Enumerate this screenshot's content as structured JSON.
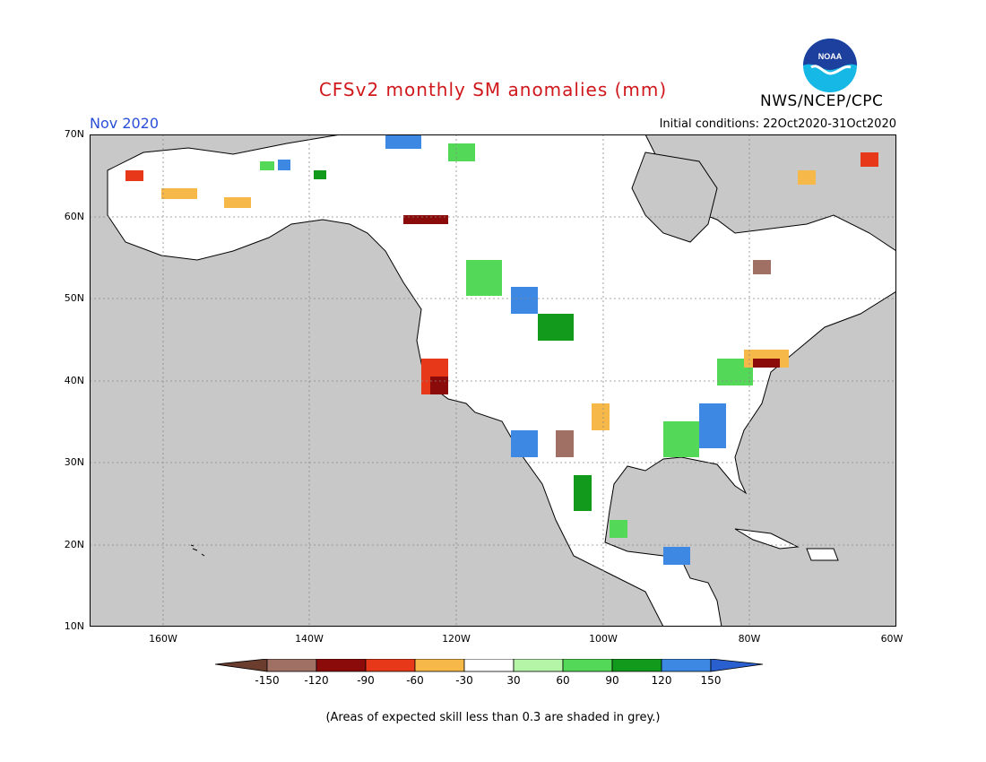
{
  "header": {
    "title": "CFSv2 monthly SM anomalies (mm)",
    "month": "Nov 2020",
    "initial_conditions": "Initial conditions: 22Oct2020-31Oct2020",
    "agency": "NWS/NCEP/CPC",
    "logo_text": "NOAA"
  },
  "map": {
    "region": "North America",
    "lat_range": [
      10,
      70
    ],
    "lon_range": [
      -170,
      -60
    ],
    "lat_labels": [
      "70N",
      "60N",
      "50N",
      "40N",
      "30N",
      "20N",
      "10N"
    ],
    "lon_labels": [
      "160W",
      "140W",
      "120W",
      "100W",
      "80W",
      "60W"
    ],
    "ocean_color": "#c8c8c8",
    "land_color": "#ffffff"
  },
  "colorbar": {
    "labels": [
      "-150",
      "-120",
      "-90",
      "-60",
      "-30",
      "30",
      "60",
      "90",
      "120",
      "150"
    ],
    "colors": [
      "#6b3d2e",
      "#a07064",
      "#8b0a0a",
      "#e8381a",
      "#f7b84a",
      "#ffffff",
      "#b4f5a8",
      "#54d858",
      "#129a1c",
      "#3d88e2",
      "#2a5fd0"
    ]
  },
  "footnote": "(Areas of expected skill less than 0.3 are shaded in grey.)"
}
